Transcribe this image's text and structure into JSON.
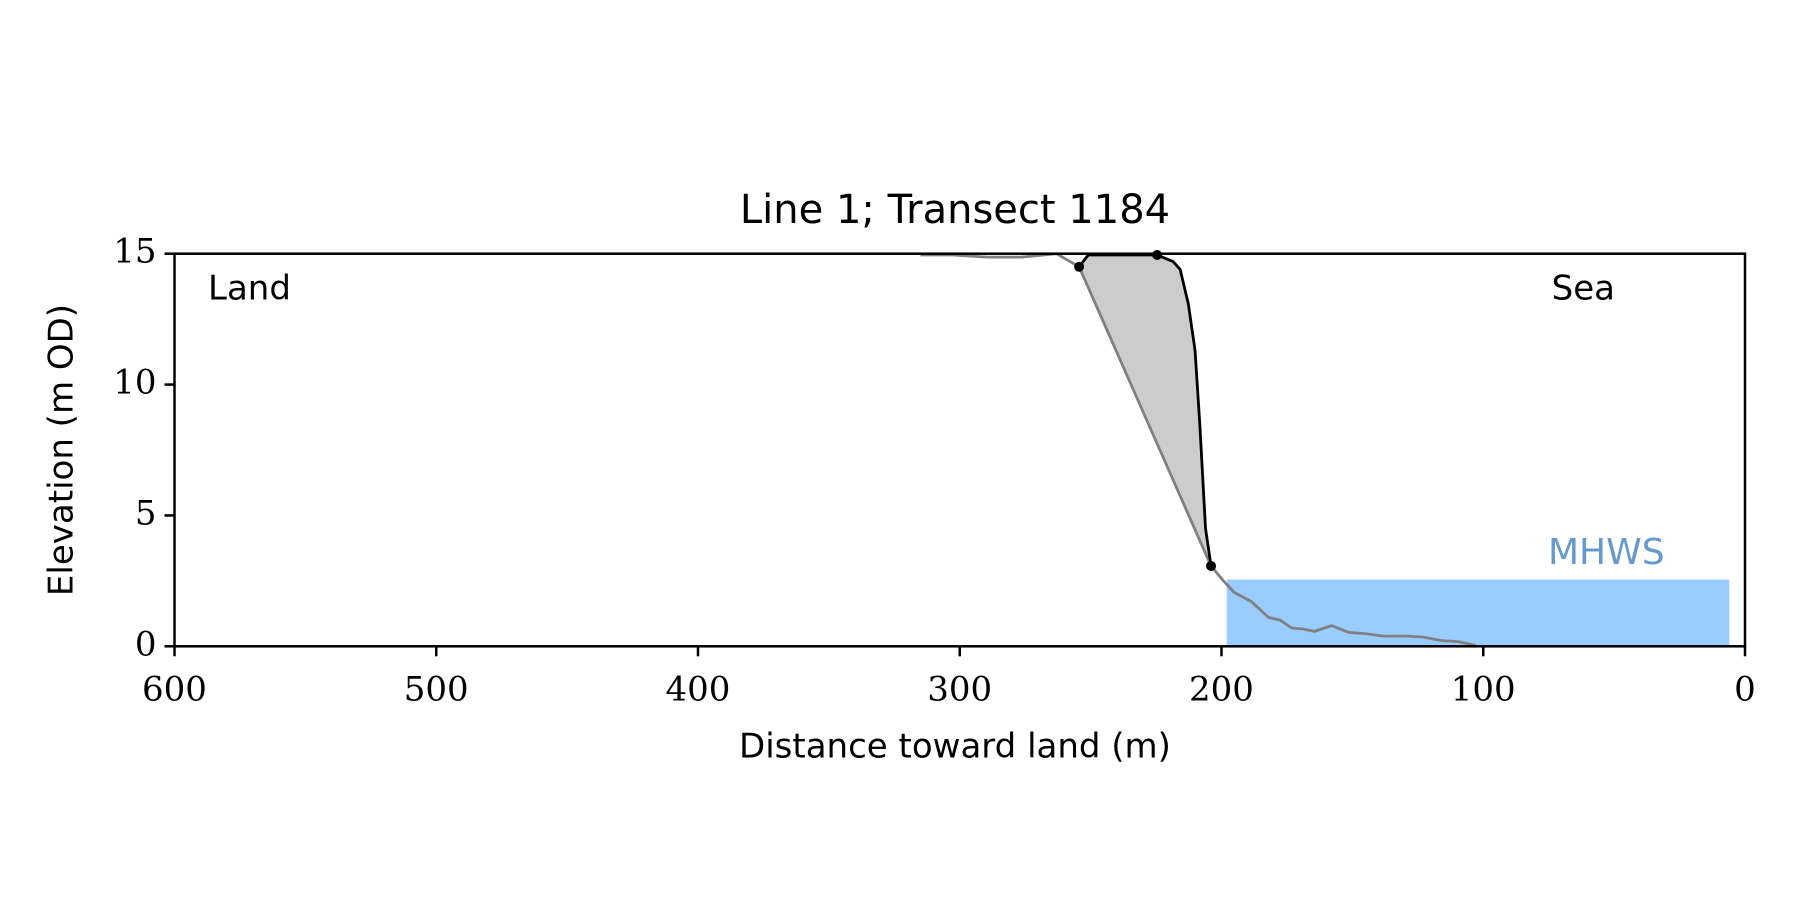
{
  "chart_data": {
    "type": "line",
    "title": "Line 1; Transect 1184",
    "xlabel": "Distance toward land (m)",
    "ylabel": "Elevation (m OD)",
    "xlim": [
      600,
      0
    ],
    "ylim": [
      0,
      15
    ],
    "xticks": [
      600,
      500,
      400,
      300,
      200,
      100,
      0
    ],
    "yticks": [
      0,
      5,
      10,
      15
    ],
    "annotations": [
      {
        "text": "Land"
      },
      {
        "text": "Sea"
      }
    ],
    "fill_color": "#cccccc",
    "series": [
      {
        "color": "#808080",
        "x": [
          315,
          302.6,
          289.5,
          276.3,
          263,
          254.4,
          204,
          199.6,
          195.2,
          188.6,
          182,
          177.6,
          173.2,
          168.9,
          164.5,
          157.9,
          151.3,
          144.7,
          138.2,
          129.4,
          122.8,
          116.2,
          109.6,
          103
        ],
        "values": [
          14.95,
          14.95,
          14.87,
          14.87,
          15,
          14.5,
          3.07,
          2.54,
          2.06,
          1.71,
          1.1,
          1.0,
          0.7,
          0.66,
          0.57,
          0.79,
          0.53,
          0.48,
          0.39,
          0.39,
          0.35,
          0.22,
          0.18,
          0.04
        ]
      },
      {
        "color": "#000000",
        "x": [
          254.4,
          250.9,
          241.2,
          232.5,
          224.6,
          218.5,
          215.8,
          212.7,
          210.1,
          208.3,
          206.1,
          204
        ],
        "values": [
          14.5,
          14.95,
          14.95,
          14.95,
          14.95,
          14.7,
          14.4,
          13.1,
          11.3,
          8.5,
          4.5,
          3.07
        ]
      }
    ],
    "markers": {
      "color": "#000000",
      "x": [
        254.4,
        224.6,
        204
      ],
      "values": [
        14.5,
        14.95,
        3.07
      ]
    },
    "mhws": {
      "label": "MHWS",
      "xrange": [
        198,
        6
      ],
      "level": 2.55,
      "color": "#99ccff",
      "label_color": "#6699cc"
    }
  }
}
